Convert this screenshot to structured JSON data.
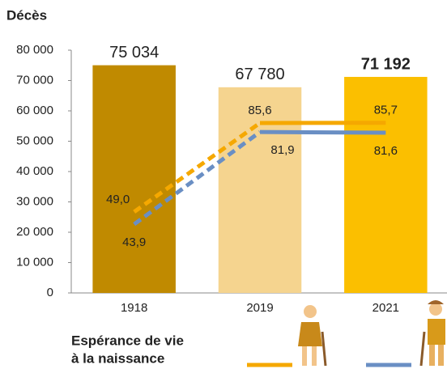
{
  "chart_data": {
    "type": "bar",
    "title": "Décès",
    "categories": [
      "1918",
      "2019",
      "2021"
    ],
    "values": [
      75034,
      67780,
      71192
    ],
    "value_labels": [
      "75 034",
      "67 780",
      "71 192"
    ],
    "colors": [
      "#c08a00",
      "#f5d48f",
      "#fbbf00"
    ],
    "ylim": [
      0,
      80000
    ],
    "yticks": [
      0,
      {
        "value": 10000,
        "label": "10 000"
      },
      {
        "value": 20000,
        "label": "20 000"
      },
      {
        "value": 30000,
        "label": "30 000"
      },
      {
        "value": 40000,
        "label": "40 000"
      },
      {
        "value": 50000,
        "label": "50 000"
      },
      {
        "value": 60000,
        "label": "60 000"
      },
      {
        "value": 70000,
        "label": "70 000"
      },
      {
        "value": 80000,
        "label": "80 000"
      }
    ],
    "y2lim": [
      15.6,
      115.6
    ],
    "line_series": [
      {
        "color": "#f5a800",
        "axis": "y2",
        "values": [
          49.0,
          85.6,
          85.7
        ],
        "value_labels": [
          "49,0",
          "85,6",
          "85,7"
        ]
      },
      {
        "color": "#6a8fc4",
        "axis": "y2",
        "values": [
          43.9,
          81.9,
          81.6
        ],
        "value_labels": [
          "43,9",
          "81,9",
          "81,6"
        ]
      }
    ],
    "legend_title": [
      "Espérance de vie",
      "à la naissance"
    ]
  }
}
